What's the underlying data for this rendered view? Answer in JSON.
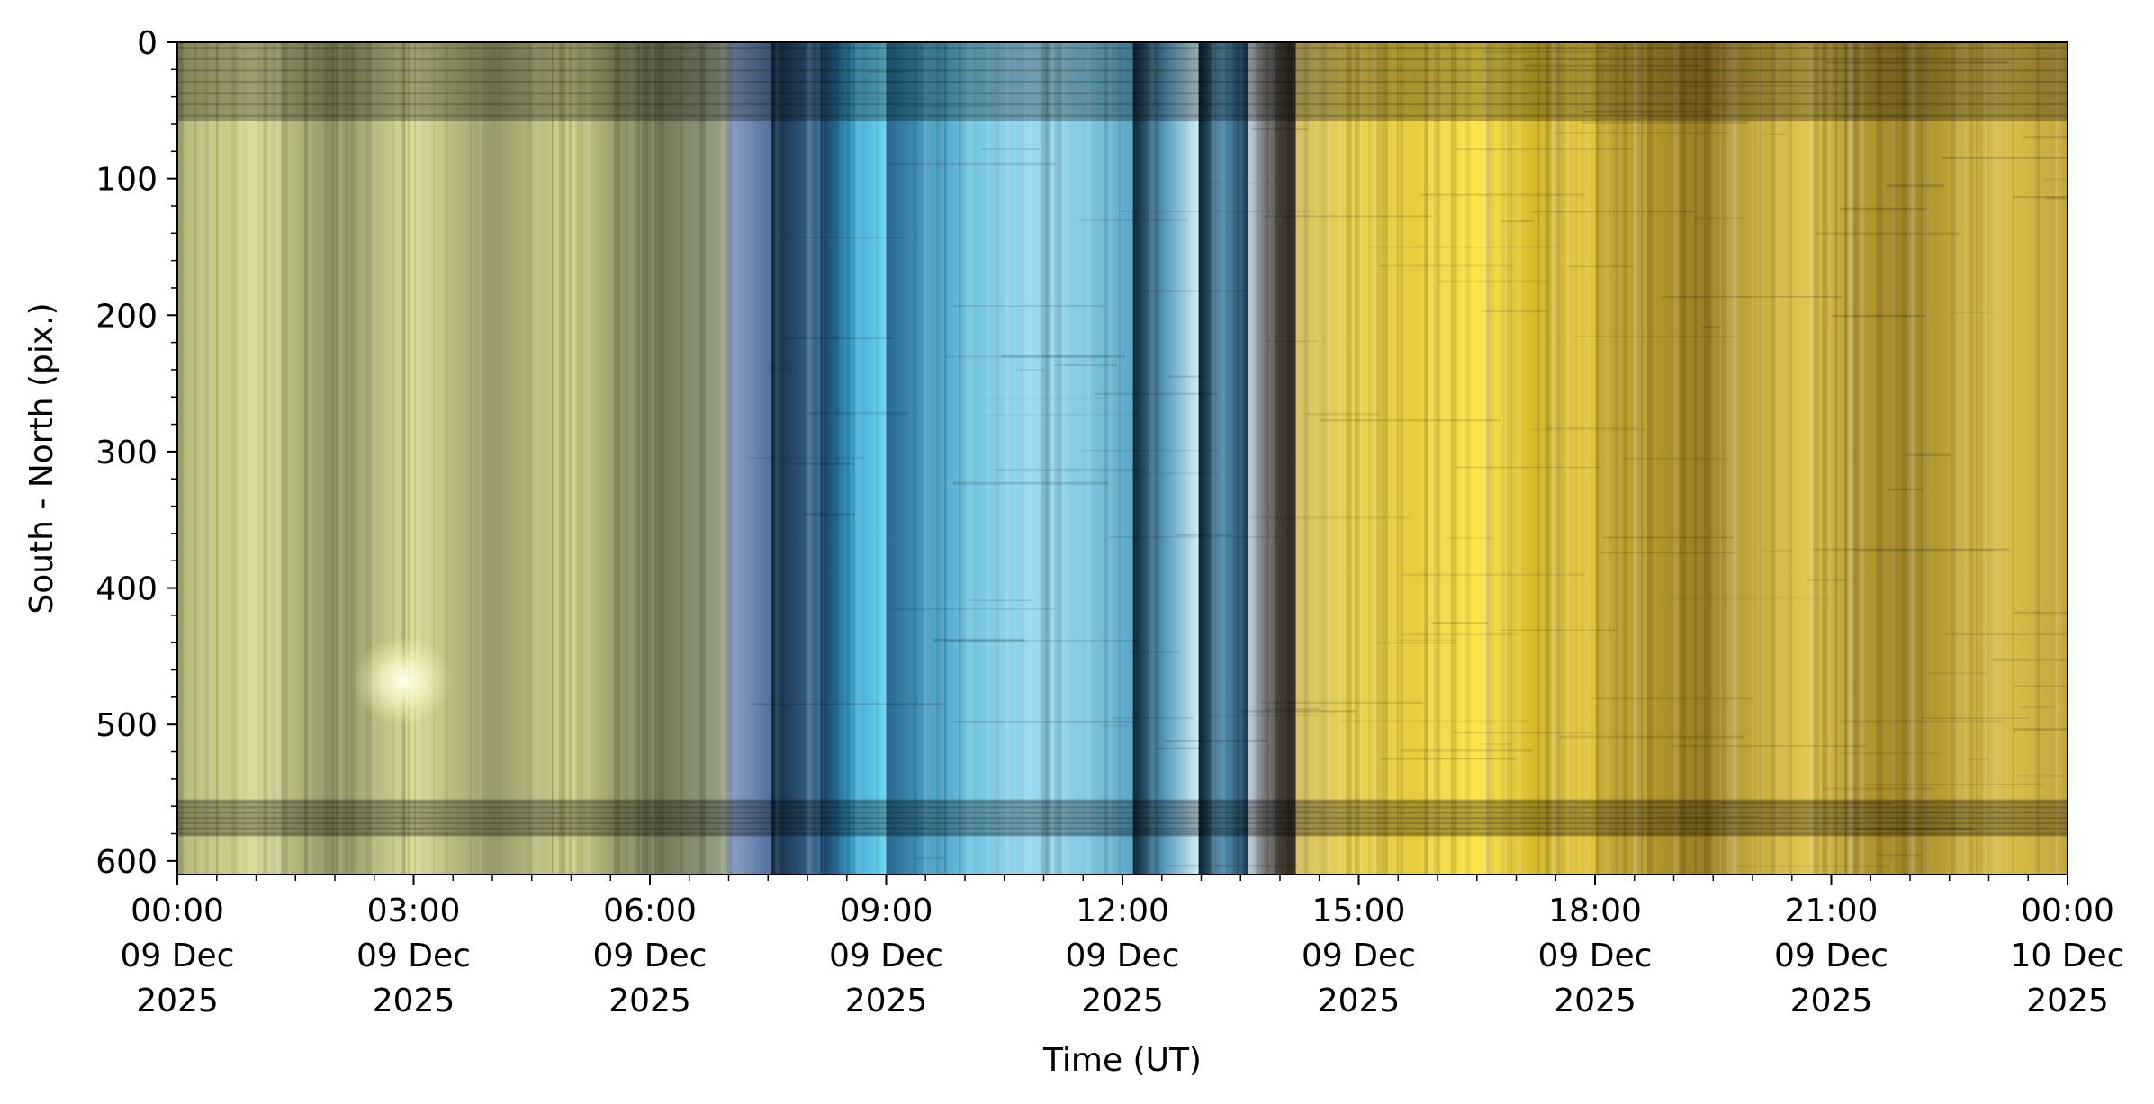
{
  "chart_data": {
    "type": "heatmap",
    "title": "",
    "xlabel": "Time (UT)",
    "ylabel": "South - North (pix.)",
    "x_ticks": [
      {
        "time": "2025-12-09T00:00",
        "line1": "00:00",
        "line2": "09 Dec",
        "line3": "2025"
      },
      {
        "time": "2025-12-09T03:00",
        "line1": "03:00",
        "line2": "09 Dec",
        "line3": "2025"
      },
      {
        "time": "2025-12-09T06:00",
        "line1": "06:00",
        "line2": "09 Dec",
        "line3": "2025"
      },
      {
        "time": "2025-12-09T09:00",
        "line1": "09:00",
        "line2": "09 Dec",
        "line3": "2025"
      },
      {
        "time": "2025-12-09T12:00",
        "line1": "12:00",
        "line2": "09 Dec",
        "line3": "2025"
      },
      {
        "time": "2025-12-09T15:00",
        "line1": "15:00",
        "line2": "09 Dec",
        "line3": "2025"
      },
      {
        "time": "2025-12-09T18:00",
        "line1": "18:00",
        "line2": "09 Dec",
        "line3": "2025"
      },
      {
        "time": "2025-12-09T21:00",
        "line1": "21:00",
        "line2": "09 Dec",
        "line3": "2025"
      },
      {
        "time": "2025-12-10T00:00",
        "line1": "00:00",
        "line2": "10 Dec",
        "line3": "2025"
      }
    ],
    "y_ticks": [
      0,
      100,
      200,
      300,
      400,
      500,
      600
    ],
    "xlim": [
      "2025-12-09T00:00",
      "2025-12-10T00:00"
    ],
    "ylim": [
      610,
      0
    ],
    "y_inverted": true,
    "segments": [
      {
        "start": "2025-12-09T00:00",
        "end": "2025-12-09T07:00",
        "colors": [
          "#b9b97a",
          "#d8d894",
          "#8f9363",
          "#dcdc98",
          "#98996a",
          "#d2d28c",
          "#6f7451",
          "#9aa48a"
        ]
      },
      {
        "start": "2025-12-09T07:00",
        "end": "2025-12-09T07:32",
        "colors": [
          "#8fa3c6",
          "#50709e"
        ]
      },
      {
        "start": "2025-12-09T07:32",
        "end": "2025-12-09T08:10",
        "colors": [
          "#142a44",
          "#3c6e96"
        ]
      },
      {
        "start": "2025-12-09T08:10",
        "end": "2025-12-09T09:00",
        "colors": [
          "#143a5c",
          "#3aa6d2",
          "#74d8f2"
        ]
      },
      {
        "start": "2025-12-09T09:00",
        "end": "2025-12-09T12:08",
        "colors": [
          "#28688c",
          "#4ca8cc",
          "#7ccbe6",
          "#9ad9ef",
          "#82c9e2",
          "#58a6c6"
        ]
      },
      {
        "start": "2025-12-09T12:08",
        "end": "2025-12-09T12:58",
        "colors": [
          "#0c2636",
          "#5a9ec0",
          "#d2ecf6"
        ]
      },
      {
        "start": "2025-12-09T12:58",
        "end": "2025-12-09T13:36",
        "colors": [
          "#0c2434",
          "#4a8aae",
          "#1c3a52"
        ]
      },
      {
        "start": "2025-12-09T13:36",
        "end": "2025-12-09T14:12",
        "colors": [
          "#b8c8d6",
          "#56504a",
          "#2c2418"
        ]
      },
      {
        "start": "2025-12-09T14:12",
        "end": "2025-12-09T18:00",
        "colors": [
          "#d8c068",
          "#ead24a",
          "#e8cc3c",
          "#ffe64a",
          "#d8b82a",
          "#e2c438"
        ]
      },
      {
        "start": "2025-12-09T18:00",
        "end": "2025-12-10T00:00",
        "colors": [
          "#c8ac32",
          "#b89a2c",
          "#9a7e22",
          "#c4a838",
          "#e2c650",
          "#b69a30",
          "#a08424",
          "#caae3c",
          "#d8bc48",
          "#c2a43a"
        ]
      }
    ],
    "bands": [
      {
        "y0": 0,
        "y1": 58,
        "dark": true
      },
      {
        "y0": 555,
        "y1": 582,
        "dark": true
      }
    ],
    "grid": false,
    "legend": "none"
  }
}
